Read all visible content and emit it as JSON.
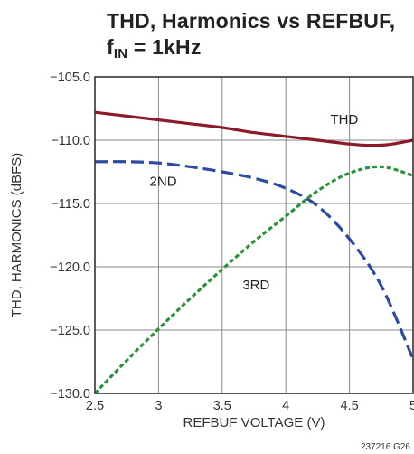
{
  "title_line1": "THD, Harmonics vs REFBUF,",
  "title_line2_main": "f",
  "title_line2_sub": "IN",
  "title_line2_rest": " = 1kHz",
  "figure_id": "237216 G26",
  "colors": {
    "thd": "#8b1a2b",
    "second": "#2e4a9e",
    "third": "#2f8f3c",
    "grid": "#888888",
    "axis": "#333333"
  },
  "chart_data": {
    "type": "line",
    "xlabel": "REFBUF VOLTAGE (V)",
    "ylabel": "THD, HARMONICS (dBFS)",
    "xlim": [
      2.5,
      5
    ],
    "ylim": [
      -130,
      -105
    ],
    "x_ticks": [
      2.5,
      3,
      3.5,
      4,
      4.5,
      5
    ],
    "x_tick_labels": [
      "2.5",
      "3",
      "3.5",
      "4",
      "4.5",
      "5"
    ],
    "y_ticks": [
      -105,
      -110,
      -115,
      -120,
      -125,
      -130
    ],
    "y_tick_labels": [
      "−105.0",
      "−110.0",
      "−115.0",
      "−120.0",
      "−125.0",
      "−130.0"
    ],
    "grid": true,
    "series": [
      {
        "name": "THD",
        "style": "solid",
        "color": "#8b1a2b",
        "x": [
          2.5,
          2.75,
          3.0,
          3.25,
          3.5,
          3.75,
          4.0,
          4.25,
          4.5,
          4.65,
          4.8,
          5.0
        ],
        "y": [
          -107.8,
          -108.1,
          -108.4,
          -108.7,
          -109.0,
          -109.4,
          -109.7,
          -110.0,
          -110.3,
          -110.4,
          -110.35,
          -110.0
        ]
      },
      {
        "name": "2ND",
        "style": "dashed",
        "color": "#2e4a9e",
        "x": [
          2.5,
          2.75,
          3.0,
          3.25,
          3.5,
          3.75,
          4.0,
          4.25,
          4.5,
          4.75,
          5.0
        ],
        "y": [
          -111.7,
          -111.7,
          -111.8,
          -112.1,
          -112.5,
          -113.0,
          -113.8,
          -115.2,
          -117.8,
          -121.5,
          -127.3
        ]
      },
      {
        "name": "3RD",
        "style": "dotted",
        "color": "#2f8f3c",
        "x": [
          2.5,
          2.75,
          3.0,
          3.25,
          3.5,
          3.75,
          4.0,
          4.25,
          4.5,
          4.75,
          5.0
        ],
        "y": [
          -130.0,
          -127.4,
          -124.9,
          -122.5,
          -120.2,
          -118.0,
          -116.0,
          -114.0,
          -112.6,
          -112.1,
          -112.8
        ]
      }
    ],
    "curve_labels": [
      {
        "text": "THD",
        "x": 4.35,
        "y": -108.7
      },
      {
        "text": "2ND",
        "x": 2.93,
        "y": -113.6
      },
      {
        "text": "3RD",
        "x": 3.66,
        "y": -121.8
      }
    ]
  }
}
